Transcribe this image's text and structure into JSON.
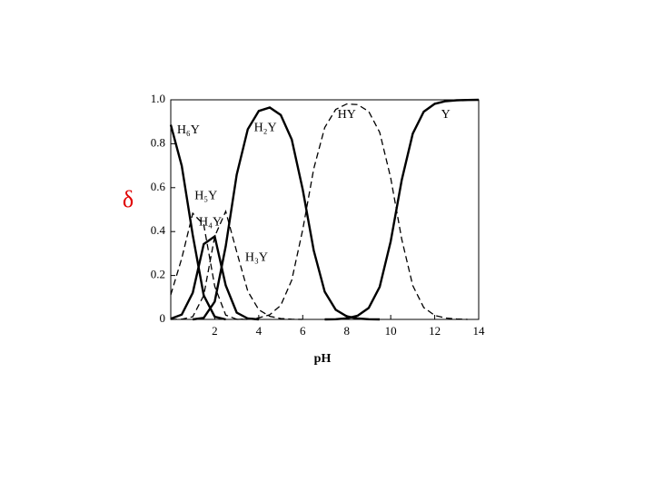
{
  "chart_data": {
    "type": "line",
    "x_label": "pH",
    "y_label": "δ",
    "y_label_color": "#e00000",
    "x": [
      0,
      0.5,
      1,
      1.5,
      2,
      2.5,
      3,
      3.5,
      4,
      4.5,
      5,
      5.5,
      6,
      6.5,
      7,
      7.5,
      8,
      8.5,
      9,
      9.5,
      10,
      10.5,
      11,
      11.5,
      12,
      12.5,
      13,
      13.5,
      14
    ],
    "xlim": [
      0,
      14
    ],
    "xticks": [
      2,
      4,
      6,
      8,
      10,
      12,
      14
    ],
    "ylim": [
      0,
      1
    ],
    "yticks": [
      0,
      0.2,
      0.4,
      0.6,
      0.8,
      {
        "value": 1,
        "label": "1.0"
      }
    ],
    "series": [
      {
        "name": "H₆Y",
        "color": "#000000",
        "style": "solid",
        "values": [
          0.886,
          0.699,
          0.384,
          0.109,
          0.012,
          0,
          null,
          null,
          null,
          null,
          null,
          null,
          null,
          null,
          null,
          null,
          null,
          null,
          null,
          null,
          null,
          null,
          null,
          null,
          null,
          null,
          null,
          null,
          null
        ]
      },
      {
        "name": "H₅Y",
        "color": "#000000",
        "style": "dashed",
        "values": [
          0.112,
          0.278,
          0.483,
          0.432,
          0.151,
          0.02,
          0.001,
          0,
          null,
          null,
          null,
          null,
          null,
          null,
          null,
          null,
          null,
          null,
          null,
          null,
          null,
          null,
          null,
          null,
          null,
          null,
          null,
          null,
          null
        ]
      },
      {
        "name": "H₄Y",
        "color": "#000000",
        "style": "solid",
        "values": [
          0.003,
          0.022,
          0.121,
          0.343,
          0.378,
          0.155,
          0.031,
          0.004,
          0,
          null,
          null,
          null,
          null,
          null,
          null,
          null,
          null,
          null,
          null,
          null,
          null,
          null,
          null,
          null,
          null,
          null,
          null,
          null,
          null
        ]
      },
      {
        "name": "H₃Y",
        "color": "#000000",
        "style": "dashed",
        "values": [
          0,
          0.001,
          0.012,
          0.109,
          0.378,
          0.492,
          0.308,
          0.128,
          0.044,
          0.014,
          0.004,
          0.001,
          0,
          null,
          null,
          null,
          null,
          null,
          null,
          null,
          null,
          null,
          null,
          null,
          null,
          null,
          null,
          null,
          null
        ]
      },
      {
        "name": "H₂Y",
        "color": "#000000",
        "style": "solid",
        "values": [
          null,
          null,
          0,
          0.007,
          0.081,
          0.333,
          0.659,
          0.866,
          0.949,
          0.965,
          0.931,
          0.819,
          0.591,
          0.314,
          0.126,
          0.044,
          0.014,
          0.004,
          0.001,
          0,
          null,
          null,
          null,
          null,
          null,
          null,
          null,
          null,
          null
        ]
      },
      {
        "name": "HY",
        "color": "#000000",
        "style": "dashed",
        "values": [
          null,
          null,
          null,
          null,
          null,
          null,
          0,
          0.002,
          0.007,
          0.021,
          0.064,
          0.179,
          0.409,
          0.686,
          0.874,
          0.956,
          0.981,
          0.978,
          0.947,
          0.852,
          0.645,
          0.365,
          0.154,
          0.054,
          0.018,
          0.006,
          0.002,
          0,
          null
        ]
      },
      {
        "name": "Y",
        "color": "#000000",
        "style": "solid",
        "values": [
          null,
          null,
          null,
          null,
          null,
          null,
          null,
          null,
          null,
          null,
          null,
          null,
          null,
          null,
          0,
          0.001,
          0.005,
          0.017,
          0.052,
          0.148,
          0.355,
          0.635,
          0.846,
          0.946,
          0.982,
          0.994,
          0.998,
          0.999,
          1
        ]
      }
    ]
  }
}
